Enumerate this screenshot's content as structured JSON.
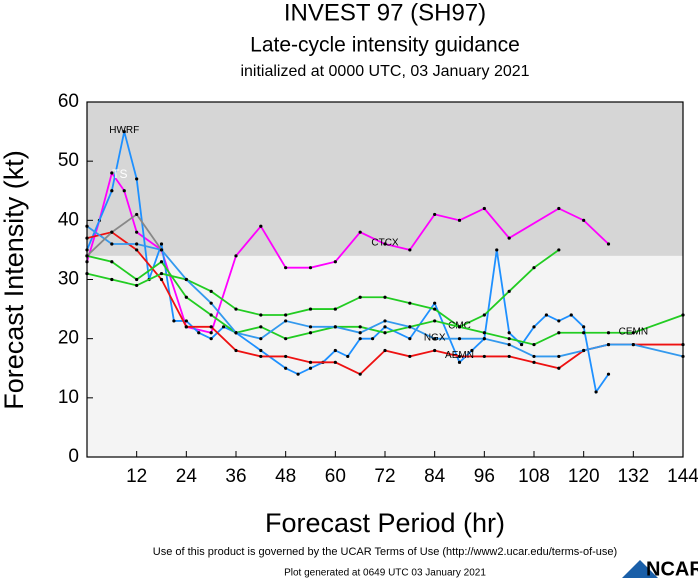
{
  "chart_data": {
    "type": "line",
    "title": "INVEST 97 (SH97)",
    "subtitle": "Late-cycle intensity guidance",
    "initialized": "initialized at 0000 UTC, 03 January 2021",
    "x_label": "Forecast Period (hr)",
    "y_label": "Forecast Intensity (kt)",
    "annotation": "TS",
    "shade_from": 34,
    "xlim": [
      0,
      144
    ],
    "xticks": [
      12,
      24,
      36,
      48,
      60,
      72,
      84,
      96,
      108,
      120,
      132,
      144
    ],
    "ylim": [
      0,
      60
    ],
    "yticks": [
      0,
      10,
      20,
      30,
      40,
      50,
      60
    ],
    "series": [
      {
        "name": "CTCX",
        "color": "#ff00ff",
        "x": [
          0,
          3,
          6,
          9,
          12,
          18,
          24,
          30,
          36,
          42,
          48,
          54,
          60,
          66,
          72,
          78,
          84,
          90,
          96,
          102,
          114,
          120,
          126
        ],
        "values": [
          33,
          40,
          48,
          45,
          38,
          35,
          22,
          21,
          34,
          39,
          32,
          32,
          33,
          38,
          36,
          35,
          41,
          40,
          42,
          37,
          42,
          40,
          36
        ]
      },
      {
        "name": "HWRF",
        "color": "#1e90ff",
        "x": [
          0,
          6,
          9,
          12,
          15,
          18,
          21,
          24,
          27,
          30,
          33,
          36,
          42,
          48,
          51,
          54,
          57,
          60,
          63,
          66,
          69,
          72,
          78,
          84,
          90,
          93,
          96,
          99,
          102,
          105,
          108,
          111,
          114,
          117,
          120,
          123,
          126
        ],
        "values": [
          35,
          45,
          55,
          47,
          30,
          36,
          23,
          23,
          21,
          20,
          22,
          21,
          18,
          15,
          14,
          15,
          16,
          18,
          17,
          20,
          20,
          22,
          20,
          26,
          16,
          18,
          20,
          35,
          21,
          19,
          22,
          24,
          23,
          24,
          22,
          11,
          14
        ]
      },
      {
        "name": "AEMN",
        "color": "#ee1111",
        "x": [
          0,
          6,
          12,
          18,
          24,
          30,
          36,
          42,
          48,
          54,
          60,
          66,
          72,
          78,
          84,
          90,
          96,
          102,
          108,
          114,
          120,
          126,
          132,
          144
        ],
        "values": [
          37,
          38,
          35,
          30,
          22,
          22,
          18,
          17,
          17,
          16,
          16,
          14,
          18,
          17,
          18,
          17,
          17,
          17,
          16,
          15,
          18,
          19,
          19,
          19
        ]
      },
      {
        "name": "CMC",
        "color": "#22cc22",
        "x": [
          0,
          6,
          12,
          18,
          24,
          30,
          36,
          42,
          48,
          54,
          60,
          66,
          72,
          78,
          84,
          90,
          96,
          102,
          108,
          114
        ],
        "values": [
          31,
          30,
          29,
          31,
          30,
          28,
          25,
          24,
          24,
          25,
          25,
          27,
          27,
          26,
          25,
          22,
          24,
          28,
          32,
          35
        ]
      },
      {
        "name": "CEMN",
        "color": "#22cc22",
        "x": [
          0,
          6,
          12,
          18,
          24,
          30,
          36,
          42,
          48,
          54,
          60,
          66,
          72,
          78,
          84,
          90,
          96,
          102,
          108,
          114,
          120,
          126,
          132,
          144
        ],
        "values": [
          34,
          33,
          30,
          33,
          27,
          24,
          21,
          22,
          20,
          21,
          22,
          22,
          21,
          22,
          23,
          22,
          21,
          20,
          19,
          21,
          21,
          21,
          21,
          24
        ]
      },
      {
        "name": "NGX",
        "color": "#3399ee",
        "x": [
          0,
          6,
          12,
          18,
          24,
          30,
          36,
          42,
          48,
          54,
          60,
          66,
          72,
          78,
          84,
          90,
          96,
          102,
          108,
          114,
          120,
          126,
          132,
          144
        ],
        "values": [
          39,
          36,
          36,
          35,
          30,
          26,
          21,
          20,
          23,
          22,
          22,
          21,
          23,
          22,
          20,
          20,
          20,
          19,
          17,
          17,
          18,
          19,
          19,
          17
        ]
      },
      {
        "color": "#888888",
        "x": [
          0,
          6,
          12,
          18
        ],
        "values": [
          34,
          38,
          41,
          35
        ]
      }
    ]
  },
  "footer": {
    "terms": "Use of this product is governed by the UCAR Terms of Use (http://www2.ucar.edu/terms-of-use)",
    "generated": "Plot generated at 0649 UTC   03 January 2021",
    "logo": "NCAR"
  }
}
